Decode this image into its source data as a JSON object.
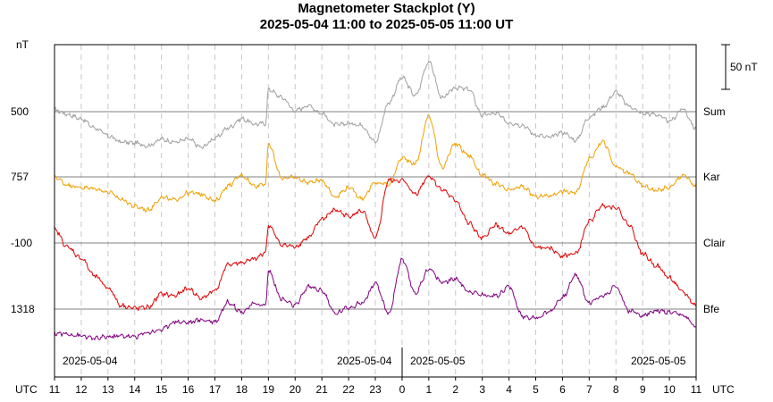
{
  "chart_data": {
    "type": "line",
    "title": "Magnetometer Stackplot (Y)",
    "subtitle": "2025-05-04 11:00 to 2025-05-05 11:00 UT",
    "y_unit_label": "nT",
    "x_axis_prefix": "UTC",
    "x_axis_suffix": "UTC",
    "x_ticks": [
      "11",
      "12",
      "13",
      "14",
      "15",
      "16",
      "17",
      "18",
      "19",
      "20",
      "21",
      "22",
      "23",
      "0",
      "1",
      "2",
      "3",
      "4",
      "5",
      "6",
      "7",
      "8",
      "9",
      "10",
      "11"
    ],
    "date_labels": [
      "2025-05-04",
      "2025-05-04",
      "2025-05-05",
      "2025-05-05"
    ],
    "scale_bar": {
      "label": "50 nT",
      "value": 50
    },
    "time_hours": [
      0,
      0.5,
      1,
      1.5,
      2,
      2.5,
      3,
      3.5,
      4,
      4.5,
      5,
      5.5,
      6,
      6.5,
      7,
      7.5,
      7.9,
      8,
      8.5,
      9,
      9.5,
      10,
      10.5,
      11,
      11.5,
      12,
      12.5,
      13,
      13.5,
      14,
      14.5,
      15,
      15.5,
      16,
      16.5,
      17,
      17.5,
      18,
      18.5,
      19,
      19.5,
      20,
      20.5,
      21,
      21.5,
      22,
      22.5,
      23,
      23.5,
      24
    ],
    "series": [
      {
        "name": "Sum",
        "baseline": "500",
        "color": "#a0a0a0",
        "offsets": [
          2,
          -3,
          -8,
          -18,
          -27,
          -34,
          -35,
          -38,
          -31,
          -34,
          -31,
          -40,
          -30,
          -18,
          -8,
          -14,
          -13,
          25,
          16,
          1,
          7,
          -2,
          -15,
          -13,
          -15,
          -34,
          10,
          38,
          18,
          56,
          15,
          27,
          25,
          -4,
          -2,
          -12,
          -15,
          -26,
          -29,
          -23,
          -32,
          -6,
          5,
          22,
          6,
          -2,
          -3,
          -11,
          3,
          -19
        ]
      },
      {
        "name": "Kar",
        "baseline": "757",
        "color": "#f0a000",
        "offsets": [
          0,
          -9,
          -12,
          -13,
          -17,
          -25,
          -33,
          -37,
          -23,
          -26,
          -18,
          -19,
          -27,
          -10,
          2,
          -10,
          -7,
          37,
          -1,
          -1,
          -6,
          -4,
          -22,
          -12,
          -24,
          -7,
          -8,
          21,
          15,
          68,
          11,
          37,
          24,
          2,
          -8,
          -15,
          -11,
          -22,
          -21,
          -16,
          -18,
          20,
          40,
          11,
          4,
          -10,
          -15,
          -12,
          2,
          -10
        ]
      },
      {
        "name": "Clair",
        "baseline": "-100",
        "color": "#e00000",
        "offsets": [
          15,
          -5,
          -17,
          -37,
          -50,
          -70,
          -73,
          -72,
          -57,
          -59,
          -51,
          -62,
          -53,
          -24,
          -22,
          -18,
          -10,
          20,
          -2,
          -4,
          6,
          27,
          37,
          30,
          36,
          5,
          70,
          70,
          55,
          75,
          60,
          48,
          22,
          5,
          20,
          10,
          18,
          -5,
          -6,
          -14,
          -12,
          24,
          42,
          40,
          20,
          -12,
          -25,
          -39,
          -55,
          -70
        ]
      },
      {
        "name": "Bfe",
        "baseline": "1318",
        "color": "#800080",
        "offsets": [
          -27,
          -28,
          -30,
          -33,
          -31,
          -30,
          -31,
          -26,
          -23,
          -14,
          -15,
          -12,
          -14,
          8,
          -3,
          6,
          4,
          43,
          11,
          4,
          25,
          21,
          -5,
          2,
          7,
          28,
          -5,
          55,
          18,
          45,
          30,
          34,
          20,
          16,
          15,
          25,
          -8,
          -10,
          -3,
          13,
          38,
          7,
          15,
          25,
          -2,
          -7,
          -2,
          -4,
          -7,
          -20
        ]
      }
    ]
  }
}
